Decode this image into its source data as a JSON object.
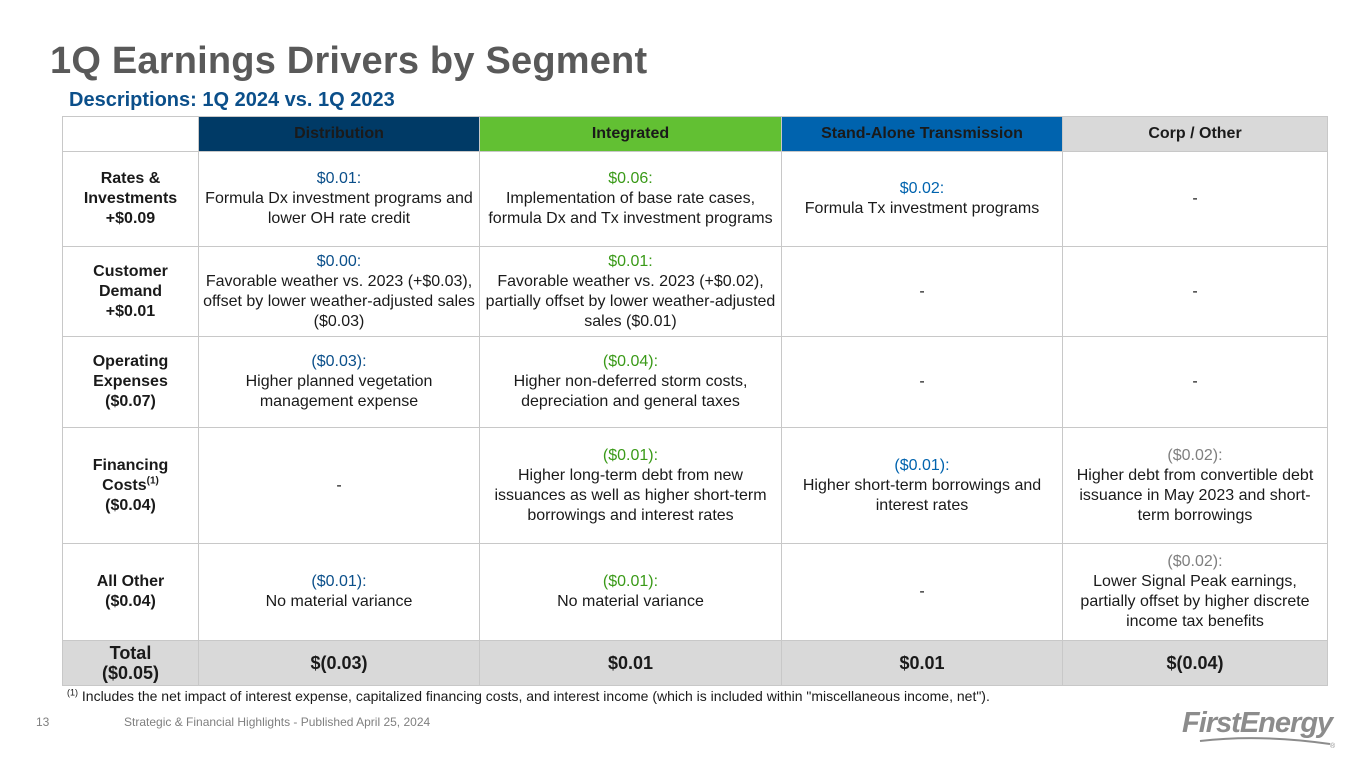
{
  "title": "1Q Earnings Drivers by Segment",
  "subtitle": "Descriptions: 1Q 2024 vs. 1Q 2023",
  "columns": {
    "distribution": "Distribution",
    "integrated": "Integrated",
    "sat": "Stand-Alone Transmission",
    "corp": "Corp / Other"
  },
  "rows": {
    "rates": {
      "label_l1": "Rates &",
      "label_l2": "Investments",
      "label_l3": "+$0.09",
      "dist_amt": "$0.01:",
      "dist_desc": "Formula Dx investment programs and lower OH rate credit",
      "int_amt": "$0.06:",
      "int_desc": "Implementation of base rate cases, formula Dx and Tx investment programs",
      "sat_amt": "$0.02:",
      "sat_desc": "Formula Tx investment programs",
      "corp": "-"
    },
    "demand": {
      "label_l1": "Customer",
      "label_l2": "Demand",
      "label_l3": "+$0.01",
      "dist_amt": "$0.00:",
      "dist_desc": "Favorable weather vs. 2023 (+$0.03), offset by lower weather-adjusted sales ($0.03)",
      "int_amt": "$0.01:",
      "int_desc": "Favorable weather vs. 2023 (+$0.02), partially offset by lower weather-adjusted sales ($0.01)",
      "sat": "-",
      "corp": "-"
    },
    "opex": {
      "label_l1": "Operating",
      "label_l2": "Expenses",
      "label_l3": "($0.07)",
      "dist_amt": "($0.03):",
      "dist_desc": "Higher planned vegetation management expense",
      "int_amt": "($0.04):",
      "int_desc": "Higher non-deferred storm costs, depreciation and general taxes",
      "sat": "-",
      "corp": "-"
    },
    "financing": {
      "label_l1": "Financing",
      "label_l2": "Costs",
      "label_sup": "(1)",
      "label_l3": "($0.04)",
      "dist": "-",
      "int_amt": "($0.01):",
      "int_desc": "Higher long-term debt from new issuances as well as higher short-term borrowings and interest rates",
      "sat_amt": "($0.01):",
      "sat_desc": "Higher short-term borrowings and interest rates",
      "corp_amt": "($0.02):",
      "corp_desc": "Higher debt from convertible debt issuance in May 2023 and short-term borrowings"
    },
    "other": {
      "label_l1": "All Other",
      "label_l2": "($0.04)",
      "dist_amt": "($0.01):",
      "dist_desc": "No material variance",
      "int_amt": "($0.01):",
      "int_desc": "No material variance",
      "sat": "-",
      "corp_amt": "($0.02):",
      "corp_desc": "Lower Signal Peak earnings, partially offset by higher discrete income tax benefits"
    },
    "total": {
      "label_l1": "Total",
      "label_l2": "($0.05)",
      "dist": "$(0.03)",
      "int": "$0.01",
      "sat": "$0.01",
      "corp": "$(0.04)"
    }
  },
  "footnote": {
    "marker": "(1)",
    "text": "Includes the net impact of interest expense, capitalized financing costs, and interest income (which is included within \"miscellaneous income, net\")."
  },
  "page_number": "13",
  "publication_note": "Strategic & Financial Highlights - Published April 25, 2024",
  "logo_text": "FirstEnergy",
  "logo_mark": "®",
  "colors": {
    "distribution": "#003a66",
    "integrated": "#62c033",
    "stand_alone_transmission": "#0063ae",
    "corp_other": "#d9d9d9",
    "title": "#595959",
    "subtitle": "#0b4f8a"
  }
}
